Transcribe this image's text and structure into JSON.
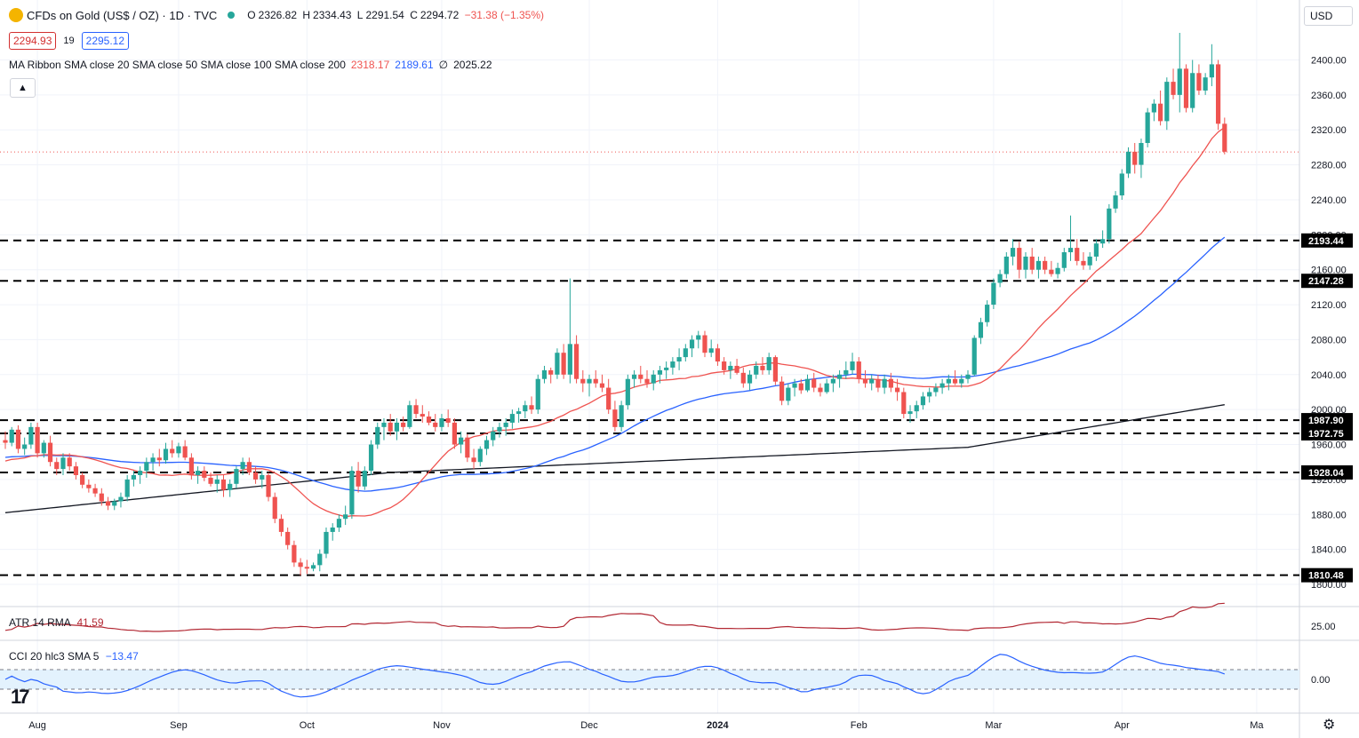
{
  "header": {
    "title": "CFDs on Gold (US$ / OZ) · 1D · TVC",
    "ohlc": {
      "o_label": "O",
      "o": "2326.82",
      "h_label": "H",
      "h": "2334.43",
      "l_label": "L",
      "l": "2291.54",
      "c_label": "C",
      "c": "2294.72",
      "change": "−31.38 (−1.35%)"
    },
    "bid": "2294.93",
    "spread": "19",
    "ask": "2295.12",
    "ma_label": "MA Ribbon SMA close 20 SMA close 50 SMA close 100 SMA close 200",
    "ma_values": {
      "sma20": "2318.17",
      "sma50": "2189.61",
      "sma100": "∅",
      "sma200": "2025.22"
    },
    "collapse_icon": "chevron-up-icon",
    "currency": "USD"
  },
  "atr": {
    "label": "ATR 14 RMA",
    "value": "41.59",
    "axis_tick": "25.00"
  },
  "cci": {
    "label": "CCI 20 hlc3 SMA 5",
    "value": "−13.47",
    "axis_tick": "0.00"
  },
  "colors": {
    "up": "#26a69a",
    "down": "#ef5350",
    "sma20": "#ef5350",
    "sma50": "#2962ff",
    "sma200": "#131722",
    "atr": "#b22833",
    "cci": "#2962ff",
    "cci_band": "#e3f2fd"
  },
  "chart_data": {
    "type": "candlestick",
    "y_ticks": [
      1800,
      1840,
      1880,
      1920,
      1960,
      2000,
      2040,
      2080,
      2120,
      2160,
      2200,
      2240,
      2280,
      2320,
      2360,
      2400
    ],
    "ylim": [
      1795,
      2425
    ],
    "current_price": 2294.72,
    "levels": [
      2193.44,
      2147.28,
      1987.9,
      1972.75,
      1928.04,
      1810.48
    ],
    "level_labels": [
      "2193.44",
      "2147.28",
      "1987.90",
      "1972.75",
      "1928.04",
      "1810.48"
    ],
    "x_labels": [
      "Aug",
      "Sep",
      "Oct",
      "Nov",
      "Dec",
      "2024",
      "Feb",
      "Mar",
      "Apr",
      "Ma"
    ],
    "x_label_index": [
      5,
      27,
      47,
      68,
      91,
      111,
      133,
      154,
      174,
      195
    ],
    "candles": [
      [
        1965,
        1975,
        1955,
        1962
      ],
      [
        1962,
        1980,
        1958,
        1977
      ],
      [
        1977,
        1982,
        1950,
        1955
      ],
      [
        1955,
        1968,
        1948,
        1960
      ],
      [
        1960,
        1985,
        1955,
        1980
      ],
      [
        1980,
        1985,
        1945,
        1950
      ],
      [
        1950,
        1965,
        1945,
        1962
      ],
      [
        1962,
        1970,
        1935,
        1940
      ],
      [
        1940,
        1945,
        1925,
        1932
      ],
      [
        1932,
        1950,
        1925,
        1945
      ],
      [
        1945,
        1950,
        1930,
        1935
      ],
      [
        1935,
        1940,
        1920,
        1925
      ],
      [
        1925,
        1928,
        1910,
        1914
      ],
      [
        1914,
        1920,
        1905,
        1910
      ],
      [
        1910,
        1915,
        1900,
        1904
      ],
      [
        1904,
        1910,
        1890,
        1895
      ],
      [
        1895,
        1900,
        1885,
        1890
      ],
      [
        1890,
        1898,
        1885,
        1895
      ],
      [
        1895,
        1905,
        1888,
        1900
      ],
      [
        1900,
        1925,
        1895,
        1920
      ],
      [
        1920,
        1930,
        1912,
        1925
      ],
      [
        1925,
        1935,
        1915,
        1930
      ],
      [
        1930,
        1945,
        1922,
        1940
      ],
      [
        1940,
        1950,
        1930,
        1945
      ],
      [
        1945,
        1955,
        1935,
        1942
      ],
      [
        1942,
        1962,
        1938,
        1955
      ],
      [
        1955,
        1965,
        1945,
        1950
      ],
      [
        1950,
        1962,
        1945,
        1958
      ],
      [
        1958,
        1965,
        1942,
        1945
      ],
      [
        1945,
        1950,
        1920,
        1925
      ],
      [
        1925,
        1935,
        1915,
        1930
      ],
      [
        1930,
        1935,
        1918,
        1922
      ],
      [
        1922,
        1928,
        1912,
        1915
      ],
      [
        1915,
        1925,
        1905,
        1920
      ],
      [
        1920,
        1925,
        1900,
        1908
      ],
      [
        1908,
        1920,
        1900,
        1915
      ],
      [
        1915,
        1935,
        1910,
        1932
      ],
      [
        1932,
        1945,
        1925,
        1940
      ],
      [
        1940,
        1945,
        1925,
        1928
      ],
      [
        1928,
        1935,
        1915,
        1920
      ],
      [
        1920,
        1930,
        1910,
        1925
      ],
      [
        1925,
        1928,
        1895,
        1900
      ],
      [
        1900,
        1905,
        1870,
        1875
      ],
      [
        1875,
        1880,
        1855,
        1860
      ],
      [
        1860,
        1865,
        1840,
        1845
      ],
      [
        1845,
        1850,
        1820,
        1825
      ],
      [
        1825,
        1830,
        1810,
        1820
      ],
      [
        1820,
        1828,
        1812,
        1818
      ],
      [
        1818,
        1825,
        1815,
        1822
      ],
      [
        1822,
        1840,
        1815,
        1835
      ],
      [
        1835,
        1865,
        1830,
        1860
      ],
      [
        1860,
        1870,
        1850,
        1865
      ],
      [
        1865,
        1880,
        1860,
        1875
      ],
      [
        1875,
        1890,
        1868,
        1880
      ],
      [
        1880,
        1935,
        1875,
        1930
      ],
      [
        1930,
        1940,
        1905,
        1912
      ],
      [
        1912,
        1935,
        1908,
        1930
      ],
      [
        1930,
        1965,
        1925,
        1960
      ],
      [
        1960,
        1985,
        1955,
        1980
      ],
      [
        1980,
        1990,
        1965,
        1985
      ],
      [
        1985,
        1995,
        1970,
        1975
      ],
      [
        1975,
        1990,
        1965,
        1985
      ],
      [
        1985,
        1992,
        1975,
        1980
      ],
      [
        1980,
        2010,
        1978,
        2005
      ],
      [
        2005,
        2012,
        1990,
        1995
      ],
      [
        1995,
        2005,
        1985,
        1992
      ],
      [
        1992,
        1998,
        1982,
        1985
      ],
      [
        1985,
        1995,
        1975,
        1980
      ],
      [
        1980,
        1995,
        1975,
        1990
      ],
      [
        1990,
        2000,
        1980,
        1985
      ],
      [
        1985,
        1990,
        1955,
        1960
      ],
      [
        1960,
        1975,
        1950,
        1968
      ],
      [
        1968,
        1972,
        1940,
        1945
      ],
      [
        1945,
        1955,
        1932,
        1940
      ],
      [
        1940,
        1958,
        1935,
        1955
      ],
      [
        1955,
        1970,
        1948,
        1965
      ],
      [
        1965,
        1980,
        1958,
        1975
      ],
      [
        1975,
        1985,
        1968,
        1980
      ],
      [
        1980,
        1990,
        1970,
        1985
      ],
      [
        1985,
        2000,
        1978,
        1995
      ],
      [
        1995,
        2002,
        1985,
        1998
      ],
      [
        1998,
        2010,
        1990,
        2005
      ],
      [
        2005,
        2015,
        1995,
        2000
      ],
      [
        2000,
        2040,
        1995,
        2035
      ],
      [
        2035,
        2050,
        2030,
        2045
      ],
      [
        2045,
        2048,
        2030,
        2040
      ],
      [
        2040,
        2070,
        2035,
        2065
      ],
      [
        2065,
        2075,
        2035,
        2040
      ],
      [
        2040,
        2150,
        2030,
        2075
      ],
      [
        2075,
        2085,
        2030,
        2035
      ],
      [
        2035,
        2045,
        2020,
        2030
      ],
      [
        2030,
        2040,
        2015,
        2035
      ],
      [
        2035,
        2045,
        2025,
        2030
      ],
      [
        2030,
        2040,
        2020,
        2025
      ],
      [
        2025,
        2035,
        1995,
        2000
      ],
      [
        2000,
        2010,
        1975,
        1980
      ],
      [
        1980,
        2010,
        1975,
        2005
      ],
      [
        2005,
        2040,
        2000,
        2035
      ],
      [
        2035,
        2045,
        2025,
        2040
      ],
      [
        2040,
        2050,
        2030,
        2035
      ],
      [
        2035,
        2045,
        2025,
        2030
      ],
      [
        2030,
        2045,
        2022,
        2040
      ],
      [
        2040,
        2050,
        2030,
        2045
      ],
      [
        2045,
        2055,
        2035,
        2048
      ],
      [
        2048,
        2060,
        2040,
        2055
      ],
      [
        2055,
        2070,
        2045,
        2060
      ],
      [
        2060,
        2075,
        2055,
        2070
      ],
      [
        2070,
        2085,
        2060,
        2080
      ],
      [
        2080,
        2090,
        2070,
        2085
      ],
      [
        2085,
        2090,
        2060,
        2065
      ],
      [
        2065,
        2080,
        2060,
        2070
      ],
      [
        2070,
        2075,
        2050,
        2055
      ],
      [
        2055,
        2060,
        2040,
        2045
      ],
      [
        2045,
        2055,
        2035,
        2050
      ],
      [
        2050,
        2058,
        2040,
        2042
      ],
      [
        2042,
        2048,
        2025,
        2030
      ],
      [
        2030,
        2045,
        2022,
        2040
      ],
      [
        2040,
        2055,
        2035,
        2050
      ],
      [
        2050,
        2060,
        2040,
        2045
      ],
      [
        2045,
        2065,
        2040,
        2060
      ],
      [
        2060,
        2062,
        2028,
        2032
      ],
      [
        2032,
        2038,
        2005,
        2010
      ],
      [
        2010,
        2030,
        2005,
        2025
      ],
      [
        2025,
        2035,
        2015,
        2030
      ],
      [
        2030,
        2035,
        2018,
        2022
      ],
      [
        2022,
        2040,
        2020,
        2035
      ],
      [
        2035,
        2042,
        2020,
        2025
      ],
      [
        2025,
        2030,
        2015,
        2020
      ],
      [
        2020,
        2035,
        2018,
        2030
      ],
      [
        2030,
        2040,
        2020,
        2035
      ],
      [
        2035,
        2045,
        2025,
        2040
      ],
      [
        2040,
        2055,
        2035,
        2045
      ],
      [
        2045,
        2065,
        2040,
        2055
      ],
      [
        2055,
        2060,
        2030,
        2035
      ],
      [
        2035,
        2045,
        2025,
        2030
      ],
      [
        2030,
        2040,
        2022,
        2035
      ],
      [
        2035,
        2040,
        2020,
        2025
      ],
      [
        2025,
        2040,
        2018,
        2035
      ],
      [
        2035,
        2042,
        2020,
        2025
      ],
      [
        2025,
        2035,
        2010,
        2020
      ],
      [
        2020,
        2025,
        1990,
        1995
      ],
      [
        1995,
        2005,
        1985,
        1998
      ],
      [
        1998,
        2010,
        1990,
        2005
      ],
      [
        2005,
        2020,
        2000,
        2015
      ],
      [
        2015,
        2025,
        2008,
        2020
      ],
      [
        2020,
        2030,
        2015,
        2025
      ],
      [
        2025,
        2035,
        2018,
        2030
      ],
      [
        2030,
        2040,
        2022,
        2035
      ],
      [
        2035,
        2045,
        2028,
        2030
      ],
      [
        2030,
        2040,
        2025,
        2035
      ],
      [
        2035,
        2045,
        2030,
        2040
      ],
      [
        2040,
        2085,
        2038,
        2082
      ],
      [
        2082,
        2105,
        2075,
        2100
      ],
      [
        2100,
        2125,
        2095,
        2120
      ],
      [
        2120,
        2150,
        2115,
        2145
      ],
      [
        2145,
        2160,
        2140,
        2155
      ],
      [
        2155,
        2180,
        2150,
        2175
      ],
      [
        2175,
        2195,
        2165,
        2185
      ],
      [
        2185,
        2192,
        2150,
        2160
      ],
      [
        2160,
        2180,
        2150,
        2175
      ],
      [
        2175,
        2185,
        2155,
        2160
      ],
      [
        2160,
        2175,
        2150,
        2170
      ],
      [
        2170,
        2175,
        2155,
        2160
      ],
      [
        2160,
        2170,
        2152,
        2155
      ],
      [
        2155,
        2168,
        2150,
        2162
      ],
      [
        2162,
        2185,
        2158,
        2180
      ],
      [
        2180,
        2222,
        2170,
        2185
      ],
      [
        2185,
        2195,
        2165,
        2170
      ],
      [
        2170,
        2180,
        2160,
        2165
      ],
      [
        2165,
        2180,
        2160,
        2175
      ],
      [
        2175,
        2195,
        2170,
        2190
      ],
      [
        2190,
        2205,
        2185,
        2195
      ],
      [
        2195,
        2235,
        2190,
        2230
      ],
      [
        2230,
        2250,
        2225,
        2245
      ],
      [
        2245,
        2275,
        2240,
        2270
      ],
      [
        2270,
        2300,
        2265,
        2295
      ],
      [
        2295,
        2305,
        2270,
        2280
      ],
      [
        2280,
        2310,
        2265,
        2305
      ],
      [
        2305,
        2345,
        2300,
        2340
      ],
      [
        2340,
        2355,
        2330,
        2350
      ],
      [
        2350,
        2365,
        2325,
        2330
      ],
      [
        2330,
        2380,
        2320,
        2375
      ],
      [
        2375,
        2390,
        2355,
        2360
      ],
      [
        2360,
        2431,
        2340,
        2390
      ],
      [
        2390,
        2395,
        2340,
        2345
      ],
      [
        2345,
        2400,
        2340,
        2385
      ],
      [
        2385,
        2395,
        2360,
        2365
      ],
      [
        2365,
        2385,
        2360,
        2380
      ],
      [
        2380,
        2418,
        2370,
        2395
      ],
      [
        2395,
        2400,
        2320,
        2327
      ],
      [
        2327,
        2334,
        2292,
        2295
      ]
    ]
  }
}
